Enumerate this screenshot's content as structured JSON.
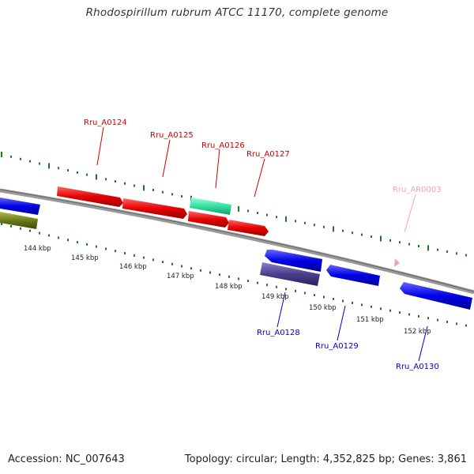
{
  "title": "Rhodospirillum rubrum ATCC 11170, complete genome",
  "footer": {
    "accession": "Accession: NC_007643",
    "summary": "Topology: circular; Length: 4,352,825 bp; Genes: 3,861"
  },
  "colors": {
    "backbone": "#808080",
    "tick_track": "#1f7a1f",
    "forward_cds": "#e60000",
    "reverse_cds": "#0000e6",
    "forward_other": "#33e0a0",
    "reverse_other": "#4a3f8c",
    "reverse_olive": "#6b7a1a",
    "forward_label": "#cc0000",
    "reverse_label": "#0000cc",
    "rna_label": "#f0a0c8"
  },
  "scale_labels": [
    "144 kbp",
    "145 kbp",
    "146 kbp",
    "147 kbp",
    "148 kbp",
    "149 kbp",
    "150 kbp",
    "151 kbp",
    "152 kbp"
  ],
  "genes": {
    "forward": [
      "Rru_A0124",
      "Rru_A0125",
      "Rru_A0126",
      "Rru_A0127"
    ],
    "rna": [
      "Rru_AR0003"
    ],
    "reverse": [
      "Rru_A0128",
      "Rru_A0129",
      "Rru_A0130"
    ]
  }
}
